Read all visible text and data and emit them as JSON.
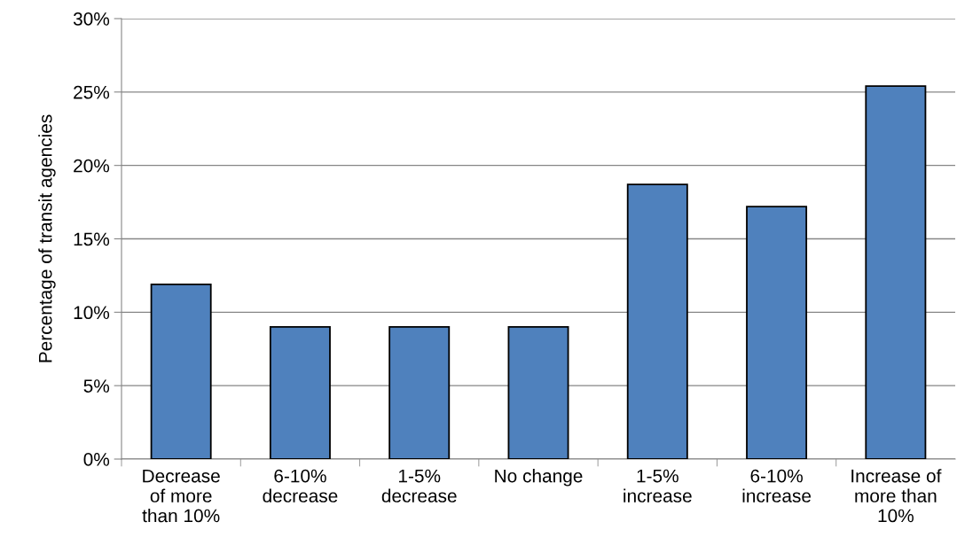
{
  "chart_data": {
    "type": "bar",
    "ylabel": "Percentage of transit agencies",
    "categories": [
      "Decrease\nof more\nthan 10%",
      "6-10%\ndecrease",
      "1-5%\ndecrease",
      "No change",
      "1-5%\nincrease",
      "6-10%\nincrease",
      "Increase of\nmore than\n10%"
    ],
    "values": [
      11.9,
      9.0,
      9.0,
      9.0,
      18.7,
      17.2,
      25.4
    ],
    "color": "#4f81bd",
    "ylim": [
      0,
      30
    ],
    "yticks": [
      {
        "value": 0,
        "label": "0%"
      },
      {
        "value": 5,
        "label": "5%"
      },
      {
        "value": 10,
        "label": "10%"
      },
      {
        "value": 15,
        "label": "15%"
      },
      {
        "value": 20,
        "label": "20%"
      },
      {
        "value": 25,
        "label": "25%"
      },
      {
        "value": 30,
        "label": "30%"
      }
    ],
    "grid": "y",
    "legend": false
  }
}
